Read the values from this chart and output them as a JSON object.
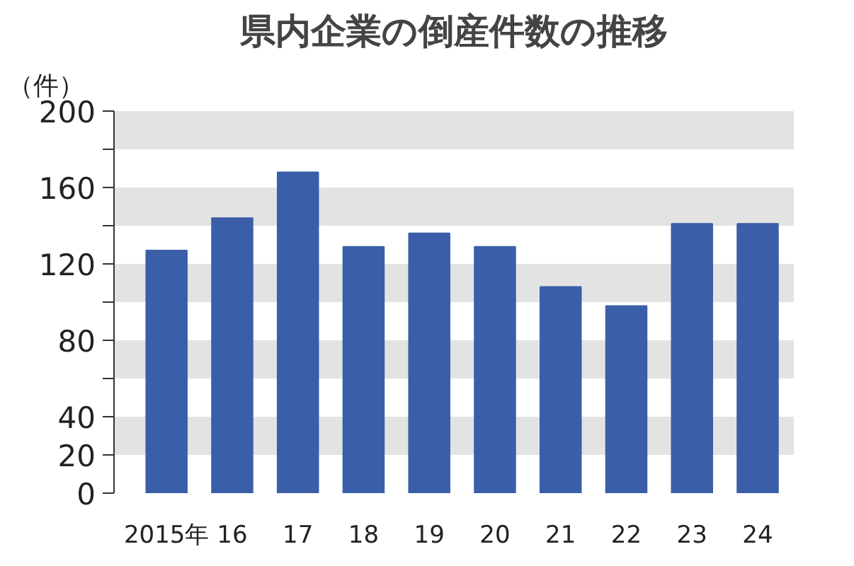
{
  "chart_data": {
    "type": "bar",
    "title": "県内企業の倒産件数の推移",
    "ylabel": "（件）",
    "categories": [
      "2015年",
      "16",
      "17",
      "18",
      "19",
      "20",
      "21",
      "22",
      "23",
      "24"
    ],
    "values": [
      127,
      144,
      168,
      129,
      136,
      129,
      108,
      98,
      141,
      141
    ],
    "color": "#3a5fa8",
    "ylim": [
      0,
      200
    ],
    "yticks": [
      0,
      20,
      40,
      {
        "value": 60,
        "label": null
      },
      80,
      {
        "value": 100,
        "label": null
      },
      120,
      {
        "value": 140,
        "label": null
      },
      160,
      {
        "value": 180,
        "label": null
      },
      200
    ],
    "bands": [
      {
        "axis": "y",
        "from": 20,
        "to": 40,
        "color": "#e3e3e3"
      },
      {
        "axis": "y",
        "from": 60,
        "to": 80,
        "color": "#e3e3e3"
      },
      {
        "axis": "y",
        "from": 100,
        "to": 120,
        "color": "#e3e3e3"
      },
      {
        "axis": "y",
        "from": 140,
        "to": 160,
        "color": "#e3e3e3"
      },
      {
        "axis": "y",
        "from": 180,
        "to": 200,
        "color": "#e3e3e3"
      }
    ],
    "grid": false
  }
}
